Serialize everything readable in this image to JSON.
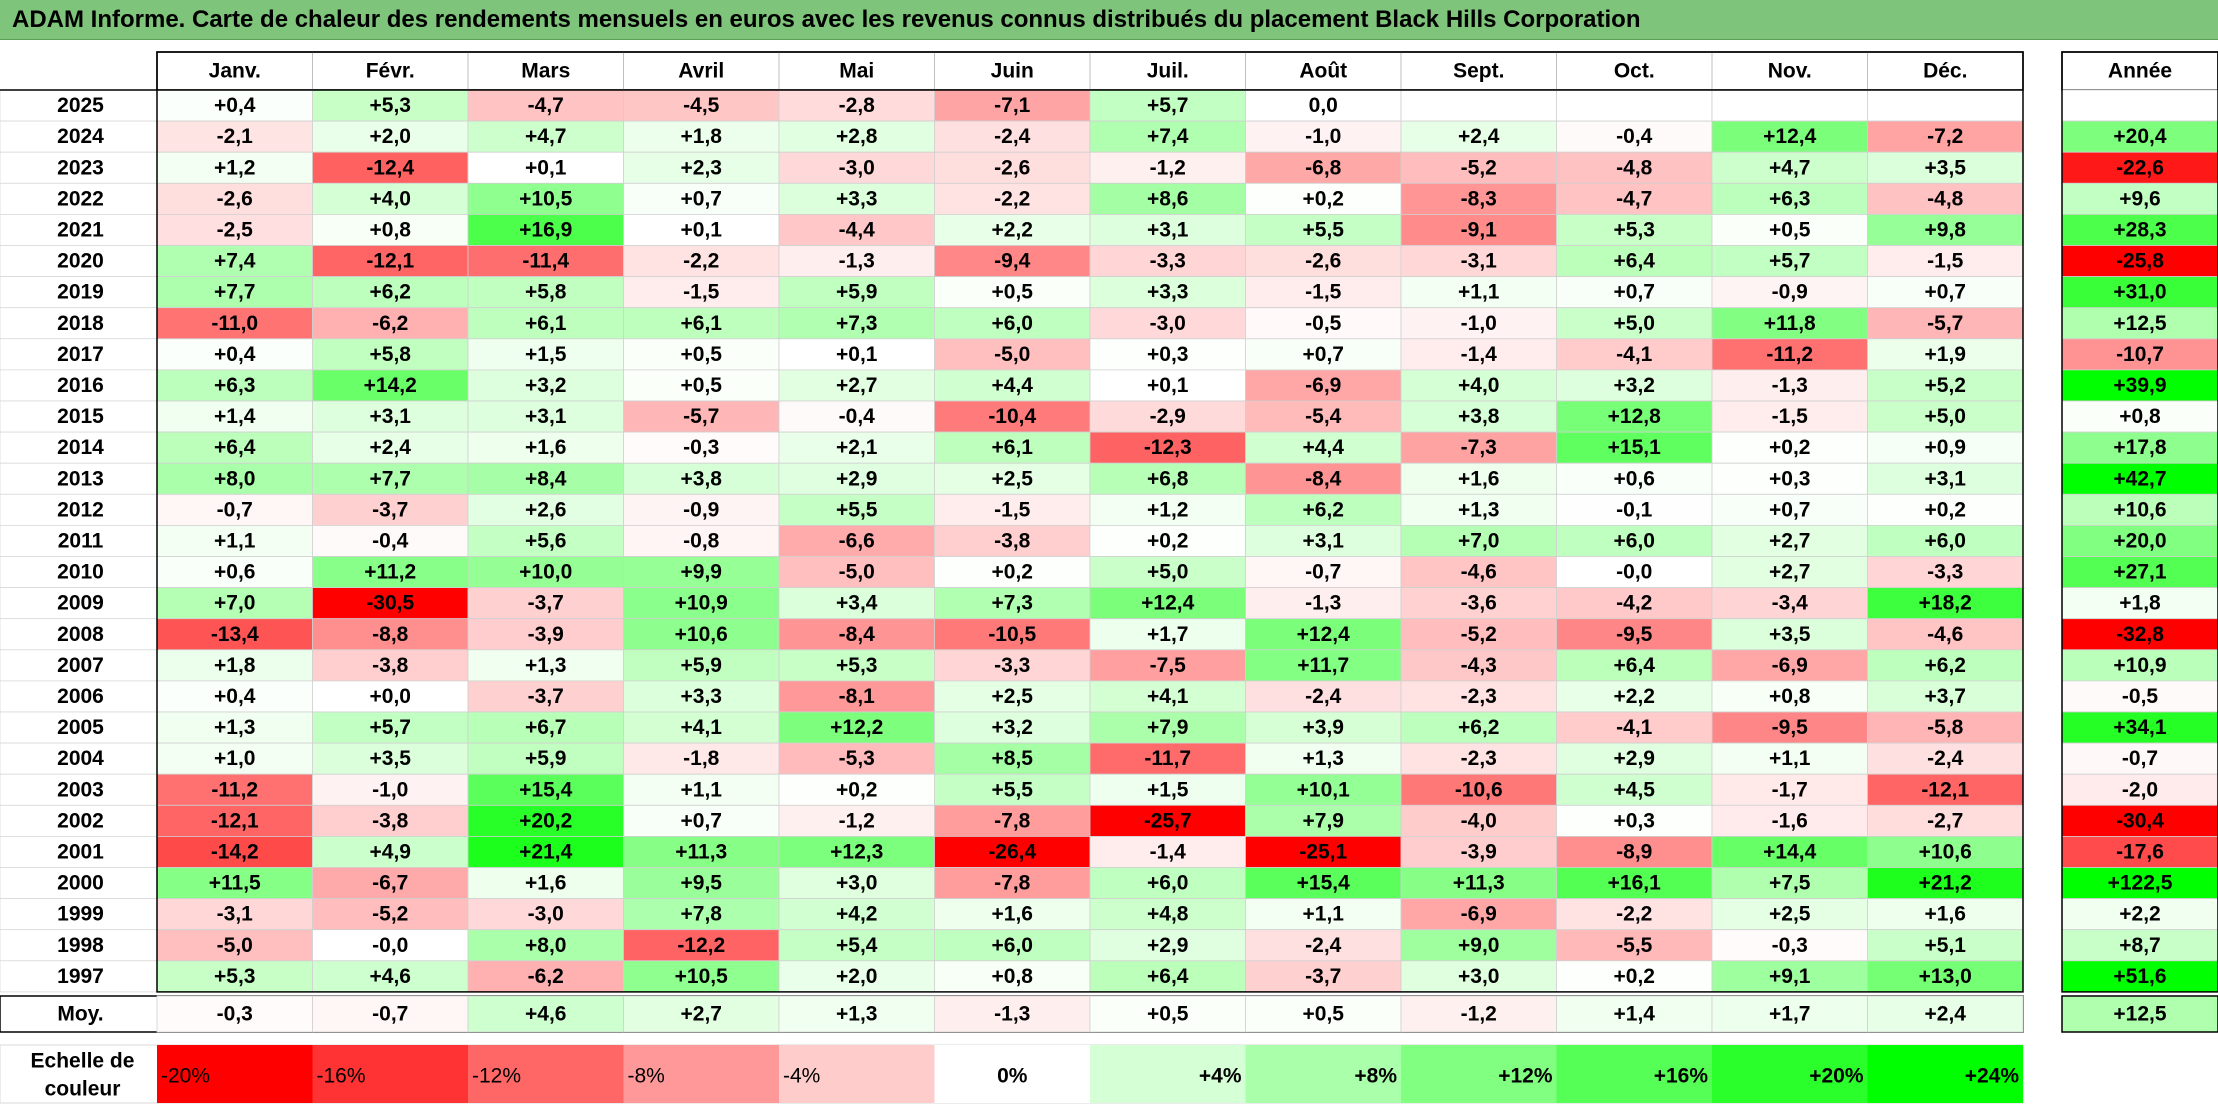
{
  "title": "ADAM Informe. Carte de chaleur des rendements mensuels en euros avec les revenus connus distribués du placement Black Hills Corporation",
  "chart_data": {
    "type": "heatmap",
    "months": [
      "Janv.",
      "Févr.",
      "Mars",
      "Avril",
      "Mai",
      "Juin",
      "Juil.",
      "Août",
      "Sept.",
      "Oct.",
      "Nov.",
      "Déc."
    ],
    "annual_header": "Année",
    "rows": [
      {
        "year": "2025",
        "values": [
          "+0,4",
          "+5,3",
          "-4,7",
          "-4,5",
          "-2,8",
          "-7,1",
          "+5,7",
          "0,0",
          "",
          "",
          "",
          ""
        ],
        "annual": ""
      },
      {
        "year": "2024",
        "values": [
          "-2,1",
          "+2,0",
          "+4,7",
          "+1,8",
          "+2,8",
          "-2,4",
          "+7,4",
          "-1,0",
          "+2,4",
          "-0,4",
          "+12,4",
          "-7,2"
        ],
        "annual": "+20,4"
      },
      {
        "year": "2023",
        "values": [
          "+1,2",
          "-12,4",
          "+0,1",
          "+2,3",
          "-3,0",
          "-2,6",
          "-1,2",
          "-6,8",
          "-5,2",
          "-4,8",
          "+4,7",
          "+3,5"
        ],
        "annual": "-22,6"
      },
      {
        "year": "2022",
        "values": [
          "-2,6",
          "+4,0",
          "+10,5",
          "+0,7",
          "+3,3",
          "-2,2",
          "+8,6",
          "+0,2",
          "-8,3",
          "-4,7",
          "+6,3",
          "-4,8"
        ],
        "annual": "+9,6"
      },
      {
        "year": "2021",
        "values": [
          "-2,5",
          "+0,8",
          "+16,9",
          "+0,1",
          "-4,4",
          "+2,2",
          "+3,1",
          "+5,5",
          "-9,1",
          "+5,3",
          "+0,5",
          "+9,8"
        ],
        "annual": "+28,3"
      },
      {
        "year": "2020",
        "values": [
          "+7,4",
          "-12,1",
          "-11,4",
          "-2,2",
          "-1,3",
          "-9,4",
          "-3,3",
          "-2,6",
          "-3,1",
          "+6,4",
          "+5,7",
          "-1,5"
        ],
        "annual": "-25,8"
      },
      {
        "year": "2019",
        "values": [
          "+7,7",
          "+6,2",
          "+5,8",
          "-1,5",
          "+5,9",
          "+0,5",
          "+3,3",
          "-1,5",
          "+1,1",
          "+0,7",
          "-0,9",
          "+0,7"
        ],
        "annual": "+31,0"
      },
      {
        "year": "2018",
        "values": [
          "-11,0",
          "-6,2",
          "+6,1",
          "+6,1",
          "+7,3",
          "+6,0",
          "-3,0",
          "-0,5",
          "-1,0",
          "+5,0",
          "+11,8",
          "-5,7"
        ],
        "annual": "+12,5"
      },
      {
        "year": "2017",
        "values": [
          "+0,4",
          "+5,8",
          "+1,5",
          "+0,5",
          "+0,1",
          "-5,0",
          "+0,3",
          "+0,7",
          "-1,4",
          "-4,1",
          "-11,2",
          "+1,9"
        ],
        "annual": "-10,7"
      },
      {
        "year": "2016",
        "values": [
          "+6,3",
          "+14,2",
          "+3,2",
          "+0,5",
          "+2,7",
          "+4,4",
          "+0,1",
          "-6,9",
          "+4,0",
          "+3,2",
          "-1,3",
          "+5,2"
        ],
        "annual": "+39,9"
      },
      {
        "year": "2015",
        "values": [
          "+1,4",
          "+3,1",
          "+3,1",
          "-5,7",
          "-0,4",
          "-10,4",
          "-2,9",
          "-5,4",
          "+3,8",
          "+12,8",
          "-1,5",
          "+5,0"
        ],
        "annual": "+0,8"
      },
      {
        "year": "2014",
        "values": [
          "+6,4",
          "+2,4",
          "+1,6",
          "-0,3",
          "+2,1",
          "+6,1",
          "-12,3",
          "+4,4",
          "-7,3",
          "+15,1",
          "+0,2",
          "+0,9"
        ],
        "annual": "+17,8"
      },
      {
        "year": "2013",
        "values": [
          "+8,0",
          "+7,7",
          "+8,4",
          "+3,8",
          "+2,9",
          "+2,5",
          "+6,8",
          "-8,4",
          "+1,6",
          "+0,6",
          "+0,3",
          "+3,1"
        ],
        "annual": "+42,7"
      },
      {
        "year": "2012",
        "values": [
          "-0,7",
          "-3,7",
          "+2,6",
          "-0,9",
          "+5,5",
          "-1,5",
          "+1,2",
          "+6,2",
          "+1,3",
          "-0,1",
          "+0,7",
          "+0,2"
        ],
        "annual": "+10,6"
      },
      {
        "year": "2011",
        "values": [
          "+1,1",
          "-0,4",
          "+5,6",
          "-0,8",
          "-6,6",
          "-3,8",
          "+0,2",
          "+3,1",
          "+7,0",
          "+6,0",
          "+2,7",
          "+6,0"
        ],
        "annual": "+20,0"
      },
      {
        "year": "2010",
        "values": [
          "+0,6",
          "+11,2",
          "+10,0",
          "+9,9",
          "-5,0",
          "+0,2",
          "+5,0",
          "-0,7",
          "-4,6",
          "-0,0",
          "+2,7",
          "-3,3"
        ],
        "annual": "+27,1"
      },
      {
        "year": "2009",
        "values": [
          "+7,0",
          "-30,5",
          "-3,7",
          "+10,9",
          "+3,4",
          "+7,3",
          "+12,4",
          "-1,3",
          "-3,6",
          "-4,2",
          "-3,4",
          "+18,2"
        ],
        "annual": "+1,8"
      },
      {
        "year": "2008",
        "values": [
          "-13,4",
          "-8,8",
          "-3,9",
          "+10,6",
          "-8,4",
          "-10,5",
          "+1,7",
          "+12,4",
          "-5,2",
          "-9,5",
          "+3,5",
          "-4,6"
        ],
        "annual": "-32,8"
      },
      {
        "year": "2007",
        "values": [
          "+1,8",
          "-3,8",
          "+1,3",
          "+5,9",
          "+5,3",
          "-3,3",
          "-7,5",
          "+11,7",
          "-4,3",
          "+6,4",
          "-6,9",
          "+6,2"
        ],
        "annual": "+10,9"
      },
      {
        "year": "2006",
        "values": [
          "+0,4",
          "+0,0",
          "-3,7",
          "+3,3",
          "-8,1",
          "+2,5",
          "+4,1",
          "-2,4",
          "-2,3",
          "+2,2",
          "+0,8",
          "+3,7"
        ],
        "annual": "-0,5"
      },
      {
        "year": "2005",
        "values": [
          "+1,3",
          "+5,7",
          "+6,7",
          "+4,1",
          "+12,2",
          "+3,2",
          "+7,9",
          "+3,9",
          "+6,2",
          "-4,1",
          "-9,5",
          "-5,8"
        ],
        "annual": "+34,1"
      },
      {
        "year": "2004",
        "values": [
          "+1,0",
          "+3,5",
          "+5,9",
          "-1,8",
          "-5,3",
          "+8,5",
          "-11,7",
          "+1,3",
          "-2,3",
          "+2,9",
          "+1,1",
          "-2,4"
        ],
        "annual": "-0,7"
      },
      {
        "year": "2003",
        "values": [
          "-11,2",
          "-1,0",
          "+15,4",
          "+1,1",
          "+0,2",
          "+5,5",
          "+1,5",
          "+10,1",
          "-10,6",
          "+4,5",
          "-1,7",
          "-12,1"
        ],
        "annual": "-2,0"
      },
      {
        "year": "2002",
        "values": [
          "-12,1",
          "-3,8",
          "+20,2",
          "+0,7",
          "-1,2",
          "-7,8",
          "-25,7",
          "+7,9",
          "-4,0",
          "+0,3",
          "-1,6",
          "-2,7"
        ],
        "annual": "-30,4"
      },
      {
        "year": "2001",
        "values": [
          "-14,2",
          "+4,9",
          "+21,4",
          "+11,3",
          "+12,3",
          "-26,4",
          "-1,4",
          "-25,1",
          "-3,9",
          "-8,9",
          "+14,4",
          "+10,6"
        ],
        "annual": "-17,6"
      },
      {
        "year": "2000",
        "values": [
          "+11,5",
          "-6,7",
          "+1,6",
          "+9,5",
          "+3,0",
          "-7,8",
          "+6,0",
          "+15,4",
          "+11,3",
          "+16,1",
          "+7,5",
          "+21,2"
        ],
        "annual": "+122,5"
      },
      {
        "year": "1999",
        "values": [
          "-3,1",
          "-5,2",
          "-3,0",
          "+7,8",
          "+4,2",
          "+1,6",
          "+4,8",
          "+1,1",
          "-6,9",
          "-2,2",
          "+2,5",
          "+1,6"
        ],
        "annual": "+2,2"
      },
      {
        "year": "1998",
        "values": [
          "-5,0",
          "-0,0",
          "+8,0",
          "-12,2",
          "+5,4",
          "+6,0",
          "+2,9",
          "-2,4",
          "+9,0",
          "-5,5",
          "-0,3",
          "+5,1"
        ],
        "annual": "+8,7"
      },
      {
        "year": "1997",
        "values": [
          "+5,3",
          "+4,6",
          "-6,2",
          "+10,5",
          "+2,0",
          "+0,8",
          "+6,4",
          "-3,7",
          "+3,0",
          "+0,2",
          "+9,1",
          "+13,0"
        ],
        "annual": "+51,6"
      }
    ],
    "average": {
      "label": "Moy.",
      "values": [
        "-0,3",
        "-0,7",
        "+4,6",
        "+2,7",
        "+1,3",
        "-1,3",
        "+0,5",
        "+0,5",
        "-1,2",
        "+1,4",
        "+1,7",
        "+2,4"
      ],
      "annual": "+12,5"
    },
    "color_scale": {
      "label_line1": "Echelle de",
      "label_line2": "couleur",
      "stops": [
        "-20%",
        "-16%",
        "-12%",
        "-8%",
        "-4%",
        "0%",
        "+4%",
        "+8%",
        "+12%",
        "+16%",
        "+20%",
        "+24%"
      ],
      "stop_values": [
        -20,
        -16,
        -12,
        -8,
        -4,
        0,
        4,
        8,
        12,
        16,
        20,
        24
      ]
    },
    "colors": {
      "negative": "#ff0000",
      "neutral": "#ffffff",
      "positive": "#00ff00",
      "title_bar": "#7ec47a"
    }
  }
}
